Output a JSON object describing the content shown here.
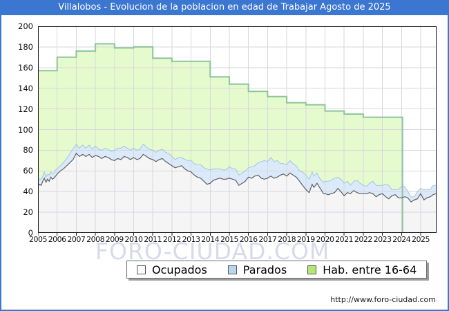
{
  "title": "Villalobos - Evolucion de la poblacion en edad de Trabajar Agosto de 2025",
  "watermark": "FORO-CIUDAD.COM",
  "footer": {
    "url": "http://www.foro-ciudad.com"
  },
  "colors": {
    "titlebar": "#3b76d1",
    "frame_border": "#3b76d1",
    "grid": "#d7d7de",
    "plot_border": "#1a1a1a",
    "hab_fill": "#e6fbcd",
    "hab_line": "#8cc49c",
    "parados_fill": "#dbeafa",
    "parados_line": "#a6c3e1",
    "ocupados_fill": "#f5f5f5",
    "ocupados_line": "#5f5f5f",
    "legend_swatch_ocupados": "#fdfdfd",
    "legend_swatch_parados": "#b7d7f0",
    "legend_swatch_hab": "#b3e674"
  },
  "legend": {
    "items": [
      {
        "label": "Ocupados",
        "swatch": "#fdfdfd"
      },
      {
        "label": "Parados",
        "swatch": "#b7d7f0"
      },
      {
        "label": "Hab. entre 16-64",
        "swatch": "#b3e674"
      }
    ]
  },
  "chart_data": {
    "type": "area",
    "title": "Villalobos - Evolucion de la poblacion en edad de Trabajar Agosto de 2025",
    "x_axis": {
      "ticks": [
        2005,
        2006,
        2007,
        2008,
        2009,
        2010,
        2011,
        2012,
        2013,
        2014,
        2015,
        2016,
        2017,
        2018,
        2019,
        2020,
        2021,
        2022,
        2023,
        2024,
        2025
      ],
      "range": [
        2005,
        2025.83
      ]
    },
    "y_axis": {
      "ticks": [
        0,
        20,
        40,
        60,
        80,
        100,
        120,
        140,
        160,
        180,
        200
      ],
      "range": [
        0,
        200
      ],
      "grid": true
    },
    "legend_position": "bottom",
    "series_hab": {
      "name": "Hab. entre 16-64",
      "style": "yearly-step",
      "years": [
        2005,
        2006,
        2007,
        2008,
        2009,
        2010,
        2011,
        2012,
        2013,
        2014,
        2015,
        2016,
        2017,
        2018,
        2019,
        2020,
        2021,
        2022,
        2023
      ],
      "values": [
        157,
        170,
        176,
        183,
        179,
        180,
        169,
        166,
        166,
        151,
        144,
        137,
        132,
        126,
        124,
        118,
        115,
        112,
        112
      ],
      "data_ends": 2024.05
    },
    "series_monthly_note": "points are [year, ocupados, parados]; parados band is stacked on top of ocupados",
    "points": [
      [
        2005.0,
        45,
        5
      ],
      [
        2005.08,
        47,
        5
      ],
      [
        2005.17,
        46,
        6
      ],
      [
        2005.25,
        50,
        5
      ],
      [
        2005.33,
        53,
        6
      ],
      [
        2005.42,
        49,
        5
      ],
      [
        2005.5,
        52,
        5
      ],
      [
        2005.58,
        50,
        6
      ],
      [
        2005.67,
        54,
        5
      ],
      [
        2005.75,
        52,
        5
      ],
      [
        2005.83,
        53,
        5
      ],
      [
        2005.92,
        55,
        6
      ],
      [
        2006.0,
        57,
        5
      ],
      [
        2006.17,
        60,
        5
      ],
      [
        2006.33,
        62,
        6
      ],
      [
        2006.5,
        65,
        7
      ],
      [
        2006.67,
        68,
        9
      ],
      [
        2006.83,
        71,
        10
      ],
      [
        2007.0,
        77,
        9
      ],
      [
        2007.17,
        74,
        8
      ],
      [
        2007.33,
        76,
        9
      ],
      [
        2007.5,
        74,
        8
      ],
      [
        2007.67,
        76,
        9
      ],
      [
        2007.83,
        73,
        8
      ],
      [
        2008.0,
        75,
        9
      ],
      [
        2008.17,
        74,
        7
      ],
      [
        2008.33,
        72,
        8
      ],
      [
        2008.5,
        74,
        8
      ],
      [
        2008.67,
        73,
        8
      ],
      [
        2008.83,
        71,
        8
      ],
      [
        2009.0,
        70,
        10
      ],
      [
        2009.17,
        72,
        10
      ],
      [
        2009.33,
        71,
        11
      ],
      [
        2009.5,
        74,
        10
      ],
      [
        2009.67,
        73,
        9
      ],
      [
        2009.83,
        71,
        9
      ],
      [
        2010.0,
        73,
        9
      ],
      [
        2010.17,
        71,
        9
      ],
      [
        2010.33,
        72,
        9
      ],
      [
        2010.5,
        76,
        10
      ],
      [
        2010.67,
        74,
        9
      ],
      [
        2010.83,
        72,
        9
      ],
      [
        2011.0,
        71,
        9
      ],
      [
        2011.17,
        69,
        9
      ],
      [
        2011.33,
        71,
        9
      ],
      [
        2011.5,
        72,
        9
      ],
      [
        2011.67,
        69,
        9
      ],
      [
        2011.83,
        67,
        10
      ],
      [
        2012.0,
        65,
        9
      ],
      [
        2012.17,
        63,
        8
      ],
      [
        2012.33,
        64,
        9
      ],
      [
        2012.5,
        65,
        8
      ],
      [
        2012.67,
        62,
        9
      ],
      [
        2012.83,
        60,
        10
      ],
      [
        2013.0,
        59,
        11
      ],
      [
        2013.17,
        56,
        11
      ],
      [
        2013.33,
        54,
        12
      ],
      [
        2013.5,
        53,
        13
      ],
      [
        2013.67,
        50,
        13
      ],
      [
        2013.83,
        47,
        15
      ],
      [
        2014.0,
        48,
        13
      ],
      [
        2014.17,
        51,
        11
      ],
      [
        2014.33,
        52,
        10
      ],
      [
        2014.5,
        53,
        9
      ],
      [
        2014.67,
        52,
        9
      ],
      [
        2014.83,
        52,
        9
      ],
      [
        2015.0,
        53,
        11
      ],
      [
        2015.17,
        52,
        10
      ],
      [
        2015.33,
        51,
        11
      ],
      [
        2015.5,
        46,
        10
      ],
      [
        2015.67,
        48,
        10
      ],
      [
        2015.83,
        50,
        10
      ],
      [
        2016.0,
        54,
        9
      ],
      [
        2016.17,
        53,
        11
      ],
      [
        2016.33,
        55,
        10
      ],
      [
        2016.5,
        56,
        12
      ],
      [
        2016.67,
        53,
        16
      ],
      [
        2016.83,
        52,
        18
      ],
      [
        2017.0,
        53,
        16
      ],
      [
        2017.17,
        55,
        18
      ],
      [
        2017.33,
        53,
        16
      ],
      [
        2017.5,
        54,
        16
      ],
      [
        2017.67,
        56,
        11
      ],
      [
        2017.83,
        57,
        10
      ],
      [
        2018.0,
        55,
        11
      ],
      [
        2018.17,
        58,
        12
      ],
      [
        2018.33,
        56,
        11
      ],
      [
        2018.5,
        54,
        11
      ],
      [
        2018.67,
        50,
        10
      ],
      [
        2018.83,
        46,
        13
      ],
      [
        2019.0,
        42,
        14
      ],
      [
        2019.17,
        39,
        13
      ],
      [
        2019.33,
        47,
        12
      ],
      [
        2019.42,
        44,
        11
      ],
      [
        2019.58,
        48,
        10
      ],
      [
        2019.75,
        43,
        9
      ],
      [
        2019.92,
        38,
        11
      ],
      [
        2020.0,
        38,
        12
      ],
      [
        2020.17,
        37,
        13
      ],
      [
        2020.33,
        38,
        13
      ],
      [
        2020.5,
        39,
        14
      ],
      [
        2020.67,
        43,
        11
      ],
      [
        2020.83,
        40,
        12
      ],
      [
        2021.0,
        36,
        12
      ],
      [
        2021.17,
        39,
        11
      ],
      [
        2021.33,
        38,
        8
      ],
      [
        2021.5,
        41,
        9
      ],
      [
        2021.67,
        39,
        12
      ],
      [
        2021.83,
        38,
        10
      ],
      [
        2022.0,
        38,
        8
      ],
      [
        2022.17,
        38,
        7
      ],
      [
        2022.33,
        39,
        9
      ],
      [
        2022.5,
        38,
        12
      ],
      [
        2022.67,
        35,
        11
      ],
      [
        2022.83,
        37,
        9
      ],
      [
        2023.0,
        38,
        8
      ],
      [
        2023.17,
        35,
        12
      ],
      [
        2023.33,
        33,
        13
      ],
      [
        2023.5,
        36,
        6
      ],
      [
        2023.67,
        37,
        5
      ],
      [
        2023.83,
        34,
        8
      ],
      [
        2024.0,
        34,
        11
      ],
      [
        2024.17,
        35,
        10
      ],
      [
        2024.33,
        34,
        6
      ],
      [
        2024.5,
        30,
        5
      ],
      [
        2024.67,
        32,
        3
      ],
      [
        2024.83,
        33,
        7
      ],
      [
        2025.0,
        38,
        5
      ],
      [
        2025.17,
        32,
        10
      ],
      [
        2025.33,
        34,
        8
      ],
      [
        2025.5,
        35,
        7
      ],
      [
        2025.65,
        37,
        9
      ],
      [
        2025.8,
        38,
        8
      ]
    ]
  }
}
